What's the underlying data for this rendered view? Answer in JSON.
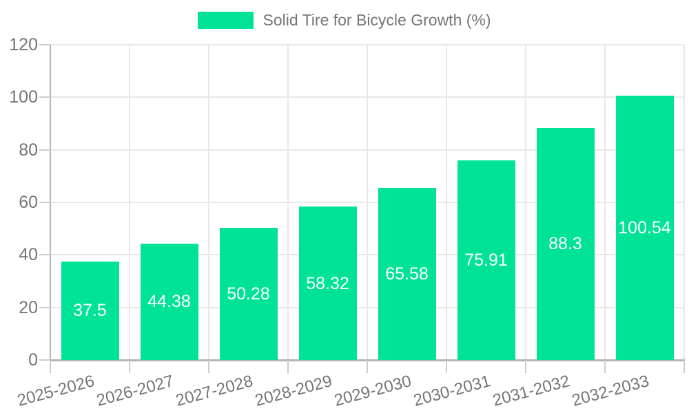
{
  "chart_data": {
    "type": "bar",
    "title": "Solid Tire for Bicycle Growth (%)",
    "legend": {
      "position": "top",
      "label": "Solid Tire for Bicycle Growth (%)",
      "swatch_color": "#00E396"
    },
    "categories": [
      "2025-2026",
      "2026-2027",
      "2027-2028",
      "2028-2029",
      "2029-2030",
      "2030-2031",
      "2031-2032",
      "2032-2033"
    ],
    "series": [
      {
        "name": "Solid Tire for Bicycle Growth (%)",
        "values": [
          37.5,
          44.38,
          50.28,
          58.32,
          65.58,
          75.91,
          88.3,
          100.54
        ],
        "data_labels": [
          "37.5",
          "44.38",
          "50.28",
          "58.32",
          "65.58",
          "75.91",
          "88.3",
          "100.54"
        ]
      }
    ],
    "xlabel": "",
    "ylabel": "",
    "ylim": [
      0,
      120
    ],
    "yticks": [
      0,
      20,
      40,
      60,
      80,
      100,
      120
    ],
    "ytick_labels": [
      "0",
      "20",
      "40",
      "60",
      "80",
      "100",
      "120"
    ],
    "grid": true,
    "colors": {
      "bar": "#00E396",
      "bar_label_text": "#ffffff",
      "axis_text": "#757575",
      "legend_text": "#757575",
      "gridline": "#e8e8e8",
      "axis_line": "#b3b3b3",
      "tick": "#cccccc",
      "background": "#ffffff"
    }
  }
}
